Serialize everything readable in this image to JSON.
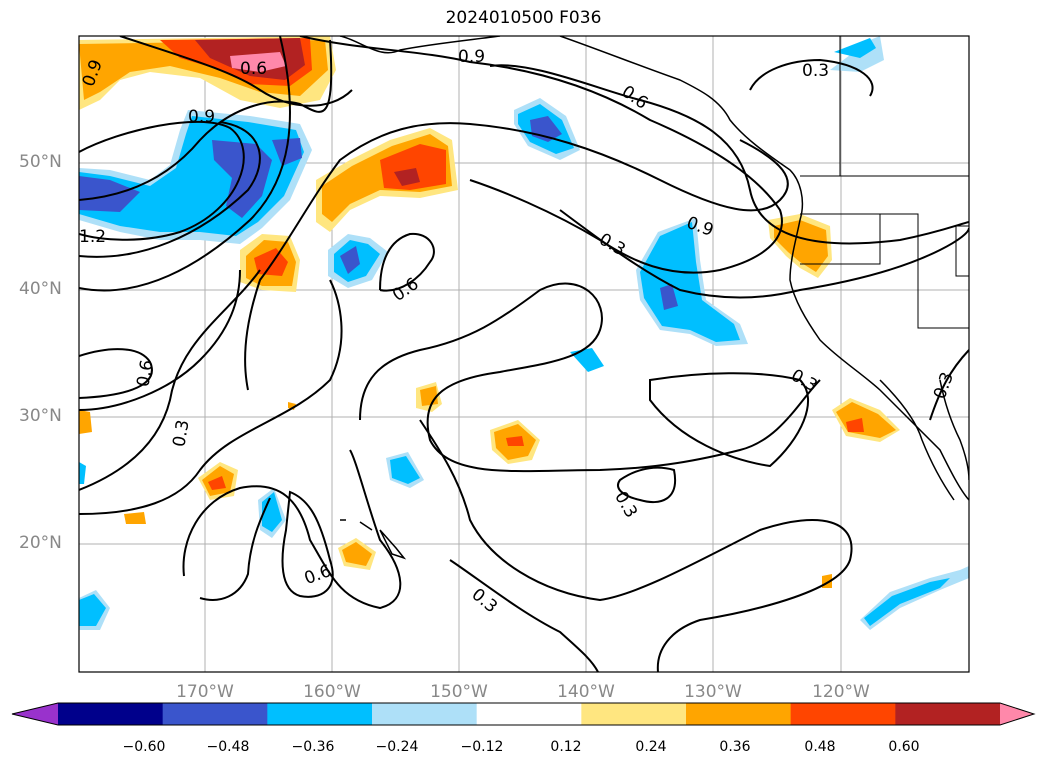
{
  "title": "2024010500 F036",
  "lat_labels": [
    "50°N",
    "40°N",
    "30°N",
    "20°N"
  ],
  "lon_labels": [
    "170°W",
    "160°W",
    "150°W",
    "140°W",
    "130°W",
    "120°W"
  ],
  "contour_labels": [
    "0.9",
    "0.6",
    "0.9",
    "1.2",
    "0.6",
    "0.3",
    "0.9",
    "0.6",
    "0.3",
    "0.6",
    "0.3",
    "0.6",
    "0.3",
    "0.3",
    "0.3",
    "0.9",
    "0.3"
  ],
  "colorbar": {
    "ticks": [
      "−0.60",
      "−0.48",
      "−0.36",
      "−0.24",
      "−0.12",
      "0.12",
      "0.24",
      "0.36",
      "0.48",
      "0.60"
    ],
    "colors": [
      "#9932cc",
      "#00008b",
      "#3a55cc",
      "#00bfff",
      "#aee0f8",
      "#ffffff",
      "#ffe680",
      "#ffa500",
      "#ff4500",
      "#b22222",
      "#ff88aa"
    ]
  }
}
